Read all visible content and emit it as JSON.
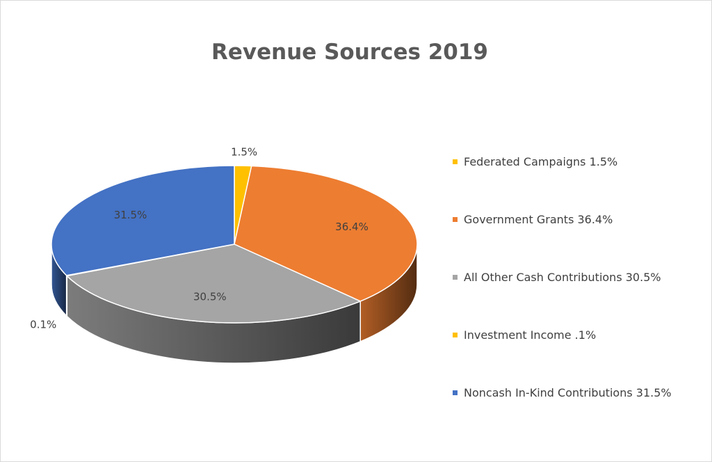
{
  "chart_data": {
    "type": "pie",
    "style": "3d",
    "title": "Revenue Sources 2019",
    "legend_position": "right",
    "slices": [
      {
        "name": "Federated Campaigns",
        "value": 1.5,
        "label": "1.5%",
        "legend": "Federated Campaigns 1.5%",
        "color": "#ffc000"
      },
      {
        "name": "Government Grants",
        "value": 36.4,
        "label": "36.4%",
        "legend": "Government Grants 36.4%",
        "color": "#ed7d31"
      },
      {
        "name": "All Other Cash Contributions",
        "value": 30.5,
        "label": "30.5%",
        "legend": "All Other Cash Contributions 30.5%",
        "color": "#a5a5a5"
      },
      {
        "name": "Investment Income",
        "value": 0.1,
        "label": "0.1%",
        "legend": "Investment Income .1%",
        "color": "#ffc000"
      },
      {
        "name": "Noncash In-Kind Contributions",
        "value": 31.5,
        "label": "31.5%",
        "legend": "Noncash In-Kind Contributions 31.5%",
        "color": "#4472c4"
      }
    ]
  }
}
